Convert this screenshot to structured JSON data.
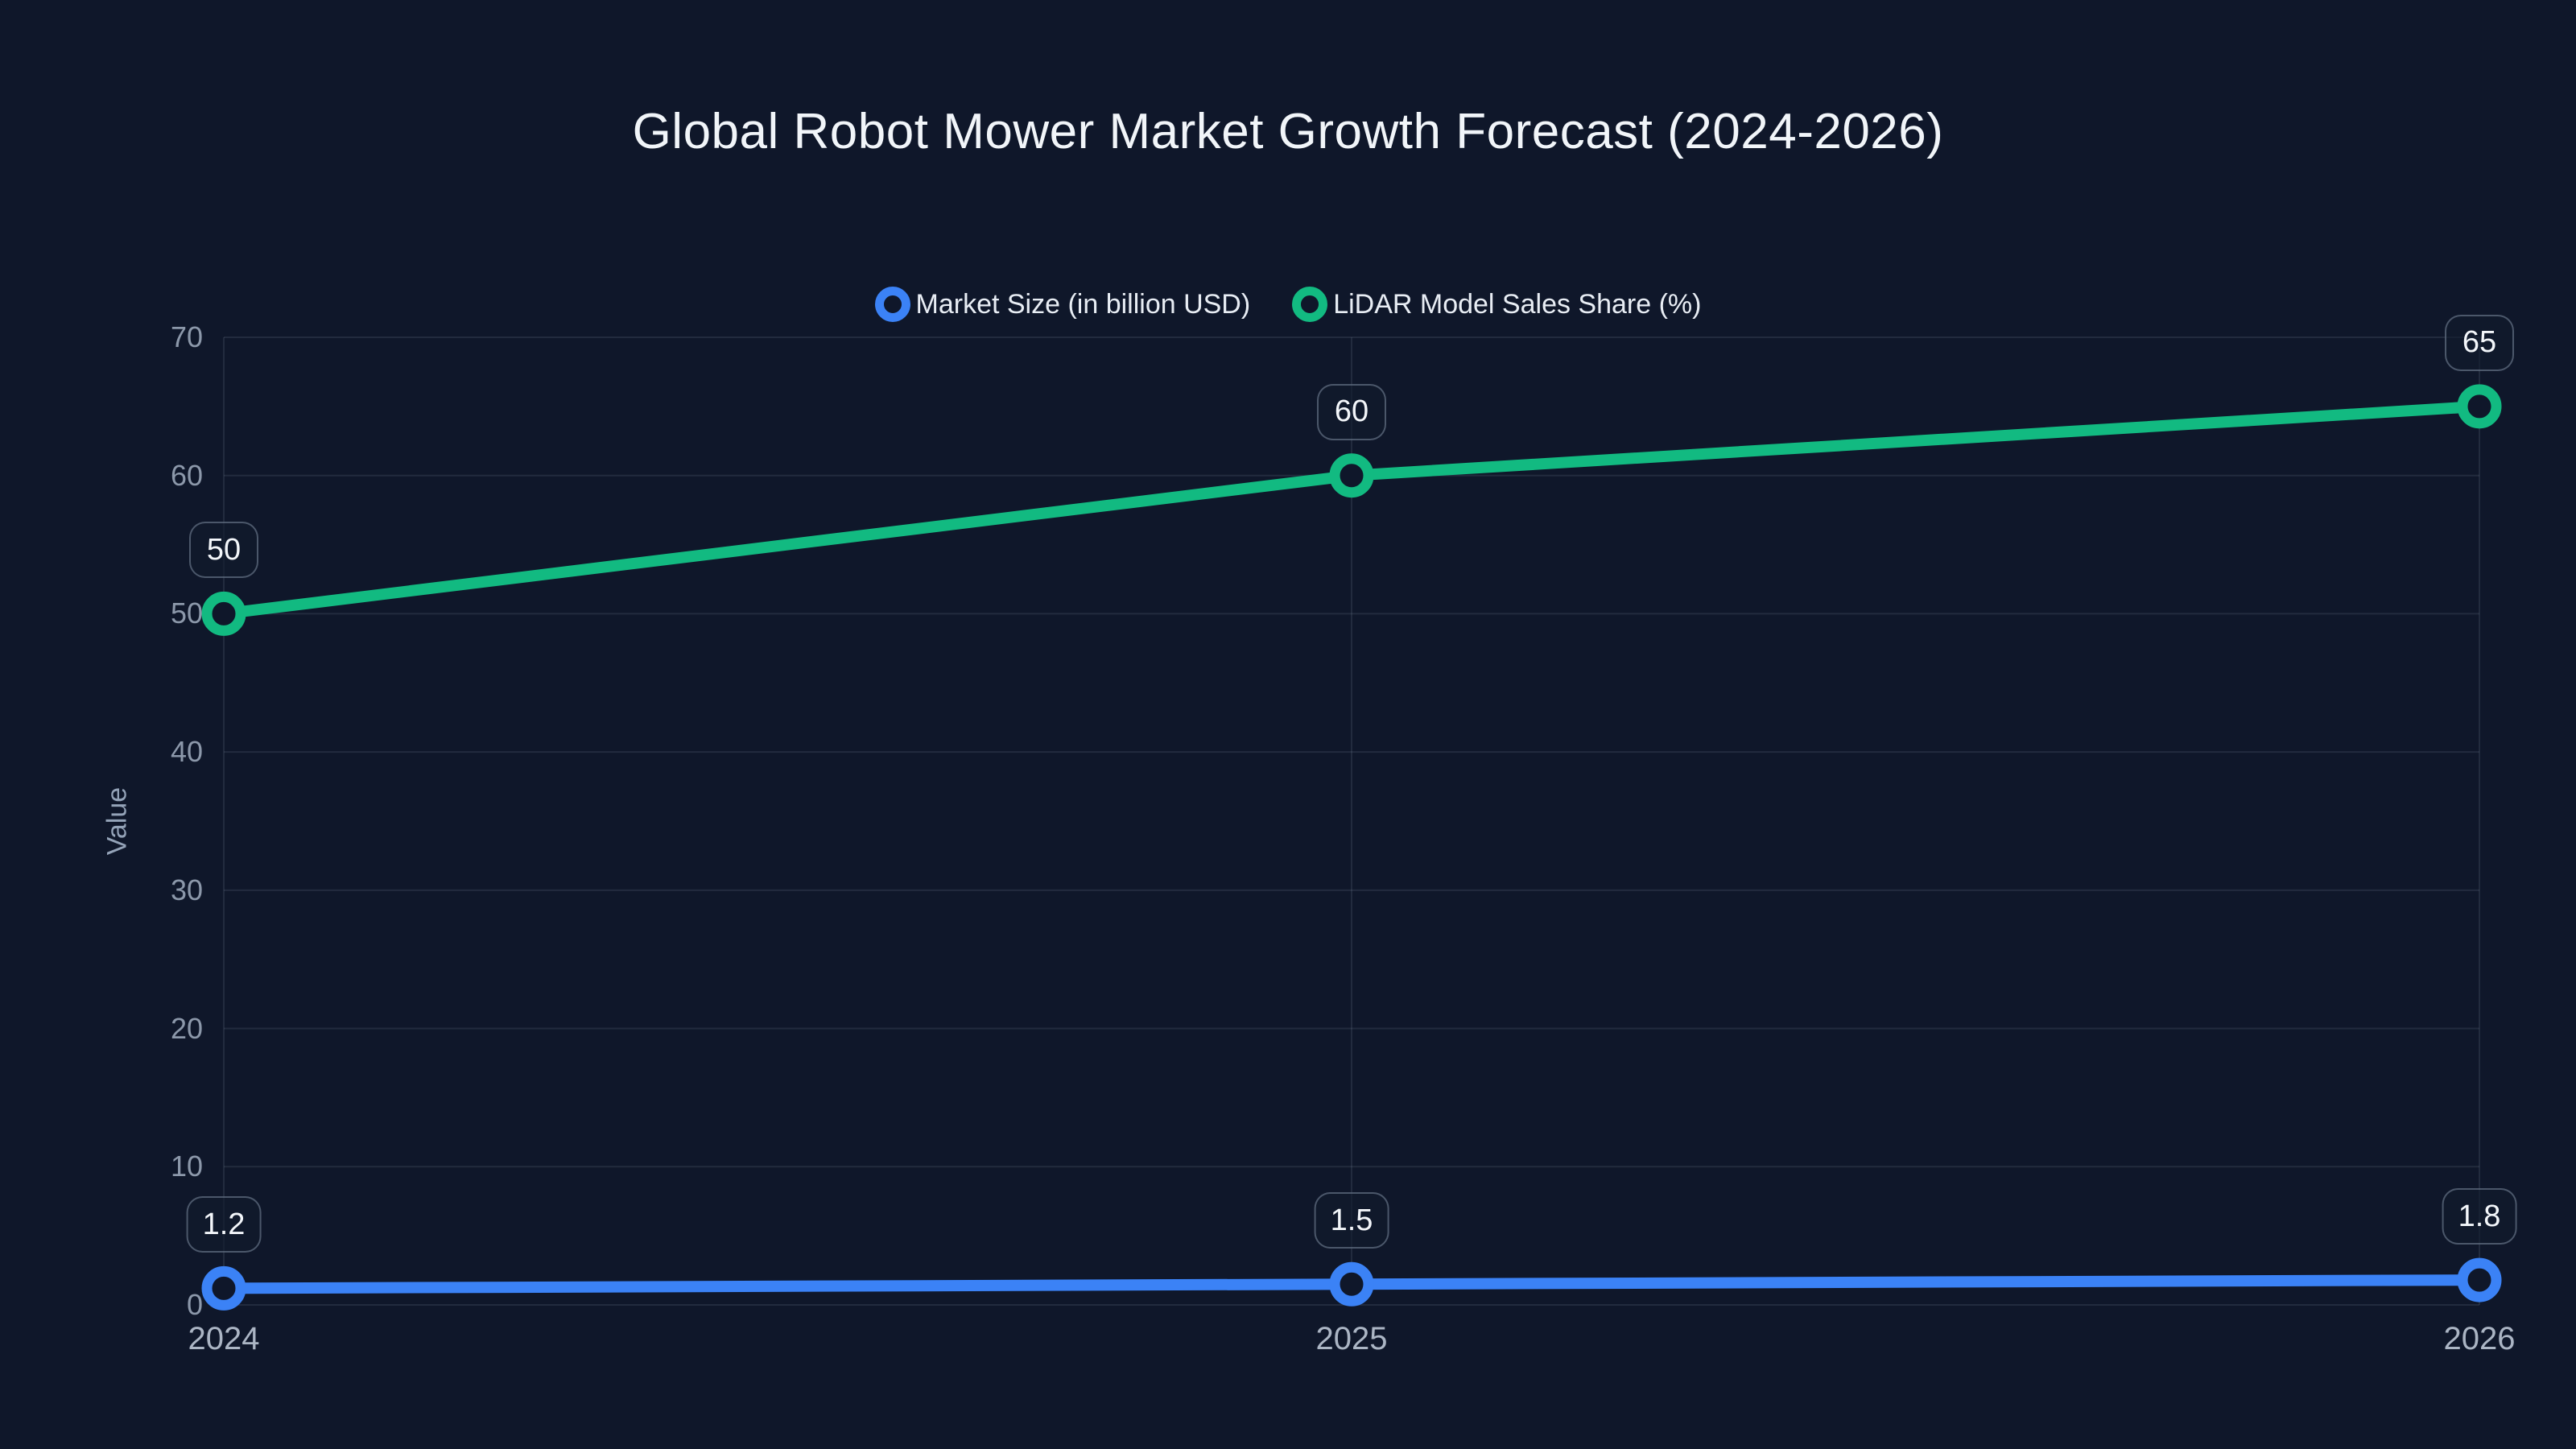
{
  "chart": {
    "title": "Global Robot Mower Market Growth Forecast (2024-2026)",
    "ylabel": "Value"
  },
  "colors": {
    "background": "#0F172A",
    "title_text": "#F1F5F9",
    "legend_text": "#E8EDF4",
    "y_tick_text": "#8C98AA",
    "x_tick_text": "#ABB5C4",
    "gridline": "rgba(148,163,184,0.15)",
    "badge_border": "rgba(148,163,184,0.45)",
    "badge_fill": "rgba(17,26,45,0.6)",
    "series_blue": "#3B82F6",
    "series_green": "#12BA81"
  },
  "chart_data": {
    "type": "line",
    "title": "Global Robot Mower Market Growth Forecast (2024-2026)",
    "xlabel": "",
    "ylabel": "Value",
    "categories": [
      "2024",
      "2025",
      "2026"
    ],
    "series": [
      {
        "name": "Market Size (in billion USD)",
        "values": [
          1.2,
          1.5,
          1.8
        ],
        "point_labels": [
          "1.2",
          "1.5",
          "1.8"
        ],
        "color": "#3B82F6",
        "marker": "ring"
      },
      {
        "name": "LiDAR Model Sales Share (%)",
        "values": [
          50,
          60,
          65
        ],
        "point_labels": [
          "50",
          "60",
          "65"
        ],
        "color": "#12BA81",
        "marker": "ring"
      }
    ],
    "ylim": [
      0,
      70
    ],
    "y_ticks": [
      0,
      10,
      20,
      30,
      40,
      50,
      60,
      70
    ],
    "grid": true,
    "legend_position": "top-center"
  }
}
